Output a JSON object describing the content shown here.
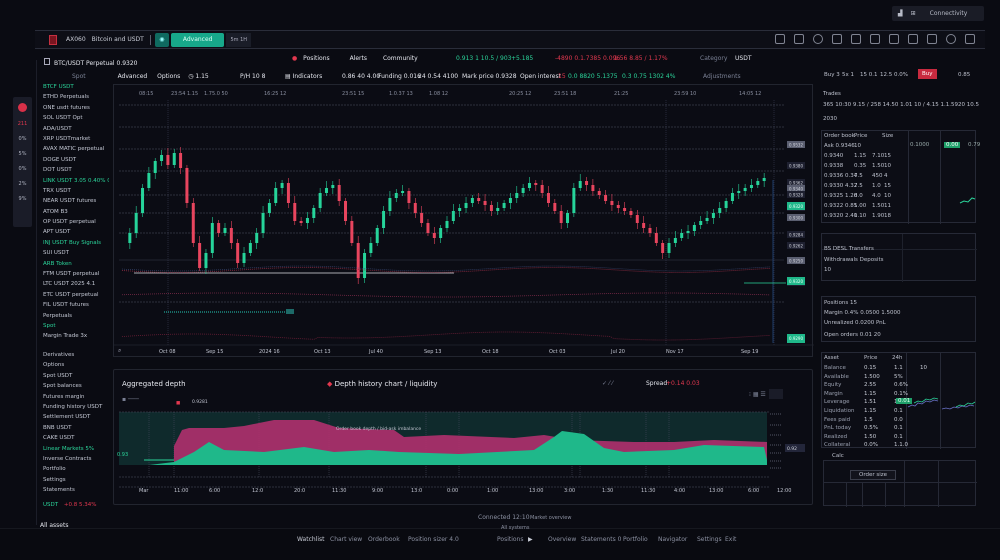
{
  "window_controls": {
    "icons": [
      "download-icon",
      "split-icon"
    ],
    "label": "Connectivity"
  },
  "toolbar": {
    "symbol_code": "AX060",
    "symbol_name": "Bitcoin and USDT",
    "active_button": "Advanced",
    "small_button": "5m 1H",
    "right_icons": [
      "layout-icon",
      "indicator-icon",
      "alert-icon",
      "drawing-icon",
      "replay-icon",
      "compare-icon",
      "template-icon",
      "calendar-icon",
      "screener-icon",
      "account-icon",
      "fullscreen-icon"
    ]
  },
  "header": {
    "pair_title": "BTC/USDT Perpetual  0.9320",
    "nav": [
      "Positions",
      "Alerts",
      "Community"
    ],
    "price_green": "0.913 1 10.5 / 903",
    "change_green": "+5.185",
    "change_red": "-4890 0.1.7385 0.096",
    "change_red2": "1.56 8.85 / 1.17%",
    "right_label": "Category",
    "right_value": "USDT",
    "sub_left": "Spot",
    "sub_items": [
      "Advanced",
      "Options",
      "1.15"
    ],
    "sub_mid": [
      "P/H 10  8",
      "Indicators"
    ],
    "sub_stats": [
      "0.86 40  4.00",
      "Funding 0.016",
      "24  0.54 4100",
      "Mark price 0.9328"
    ],
    "sub_right_label": "Open interest",
    "sub_right_red": "15",
    "sub_right_green": "0.0 8820 5.1375",
    "sub_right_2": "0.3  0.75 1302  4%",
    "sub_right_3": "Adjustments"
  },
  "sidebar": {
    "mini": [
      "L",
      "211",
      "0%",
      "5%",
      "0%",
      "2%",
      "9%"
    ],
    "watchlist": [
      {
        "label": "BTCF USDT",
        "color": "green"
      },
      {
        "label": "ETHD Perpetuals",
        "color": "white"
      },
      {
        "label": "ONE usdt futures",
        "color": "white"
      },
      {
        "label": "SOL USDT    Opt",
        "color": "white"
      },
      {
        "label": "ADA/USDT",
        "color": "white"
      },
      {
        "label": "XRP USDTmarket",
        "color": "white"
      },
      {
        "label": "AVAX MATIC perpetual",
        "color": "white"
      },
      {
        "label": "DOGE USDT",
        "color": "white"
      },
      {
        "label": "DOT USDT",
        "color": "white"
      },
      {
        "label": "LINK USDT   3.05 0.40% 0.01",
        "color": "green"
      },
      {
        "label": "TRX USDT",
        "color": "white"
      },
      {
        "label": "NEAR USDT futures",
        "color": "white"
      },
      {
        "label": "ATOM B3",
        "color": "white"
      },
      {
        "label": "OP USDT perpetual",
        "color": "white"
      },
      {
        "label": "APT USDT",
        "color": "white"
      },
      {
        "label": "INJ USDT Buy Signals",
        "color": "green"
      },
      {
        "label": "SUI USDT",
        "color": "white"
      },
      {
        "label": "ARB Token",
        "color": "green"
      },
      {
        "label": "FTM USDT perpetual",
        "color": "white"
      },
      {
        "label": "LTC USDT 2025 4.1",
        "color": "white"
      },
      {
        "label": "ETC USDT perpetual",
        "color": "white"
      },
      {
        "label": "FIL USDT futures",
        "color": "white"
      },
      {
        "label": "Perpetuals",
        "color": "white"
      },
      {
        "label": "Spot",
        "color": "green"
      },
      {
        "label": "Margin Trade 3x",
        "color": "white"
      }
    ],
    "watchlist2": [
      {
        "label": "Derivatives",
        "color": "white"
      },
      {
        "label": "Options",
        "color": "white"
      },
      {
        "label": "Spot USDT",
        "color": "white"
      },
      {
        "label": "Spot balances",
        "color": "white"
      },
      {
        "label": "Futures margin",
        "color": "white"
      },
      {
        "label": "Funding history  USDT",
        "color": "white"
      },
      {
        "label": "Settlement USDT",
        "color": "white"
      },
      {
        "label": "BNB USDT",
        "color": "white"
      },
      {
        "label": "CAKE USDT",
        "color": "white"
      },
      {
        "label": "Linear Markets   5%",
        "color": "green"
      },
      {
        "label": "Inverse Contracts",
        "color": "white"
      },
      {
        "label": "Portfolio",
        "color": "white"
      },
      {
        "label": "Settings",
        "color": "white"
      },
      {
        "label": "Statements",
        "color": "white"
      }
    ],
    "status_green": "USDT",
    "status_red": "+0.8 5.34%",
    "bottom_label": "All assets"
  },
  "main_chart": {
    "top_labels": [
      "08:15",
      "23:54 1.15",
      "1.75.0 50",
      "16:25 12",
      "23:51 15",
      "1.0.37 13",
      "1.08 12",
      "20:25 12",
      "23:51 18",
      "21:25",
      "23:59 10",
      "14:05 12"
    ],
    "x_labels": [
      "Oct 08",
      "Sep 15",
      "2024 16",
      "Oct 13",
      "Jul 40",
      "Sep 13",
      "Oct 18",
      "Oct 03",
      "Jul 20",
      "Nov 17",
      "Sep 19"
    ],
    "price_tags": [
      "0.9532",
      "0.9380",
      "0.9362",
      "0.9340",
      "0.9328",
      "0.9312",
      "0.9300",
      "0.9284",
      "0.9262",
      "0.9250",
      "0.9228"
    ],
    "tag_current": "0.9320",
    "tag_bottom": "0.9290",
    "colors": {
      "up": "#26d49a",
      "down": "#e8455e",
      "grid": "#3a3d4a"
    }
  },
  "sub_chart": {
    "title": "Aggregated depth",
    "mid_title": "Depth history chart / liquidity",
    "right_label": "Spread",
    "right_value": "+0.14 0.03",
    "annotation": "Order book depth / bid-ask imbalance",
    "left_value": "0.93",
    "left_tag": "0.9281",
    "price_tag": "0.92",
    "x_labels": [
      "Mar",
      "11:00",
      "6:00",
      "12:0",
      "20:0",
      "11:30",
      "9:00",
      "13:0",
      "0:00",
      "1:00",
      "13:00",
      "3:00",
      "1:30",
      "11:30",
      "4:00",
      "13:00",
      "6:00",
      "12:00"
    ],
    "colors": {
      "bid": "#1fb88a",
      "ask": "#b0306e",
      "band": "#113a38"
    }
  },
  "right_panel": {
    "tabs": [
      "Buy 3",
      "5x 1",
      "15 0.1",
      "12.5 0.0%"
    ],
    "buy_button": "Buy",
    "tab_extra": "0.85",
    "section1_title": "Trades",
    "section1_line": "365 10:30 9.15 / 258 14.50 1.01 10 / 4.15  1.1.5920   10.5",
    "section1_sub": "2030",
    "table_header": [
      "Order book",
      "Price",
      "Size"
    ],
    "table_rows": [
      [
        "Ask 0.9346",
        "10",
        "",
        ""
      ],
      [
        "0.9340",
        "1.15",
        "7.10",
        "15"
      ],
      [
        "0.9338",
        "0.35",
        "1.50",
        "10"
      ],
      [
        "0.9336 0.34",
        "7.5",
        "450",
        "4"
      ],
      [
        "0.9330  4.32",
        "7.5",
        "1.0",
        "15"
      ],
      [
        "0.9325  1.20",
        "8.0",
        "4.0",
        "10"
      ],
      [
        "0.9322  0.85",
        "1.00",
        "1.50",
        "11"
      ],
      [
        "0.9320  2.40",
        "1.10",
        "1.90",
        "18"
      ]
    ],
    "mini_header": [
      "0.1000",
      "0.00",
      "0.79"
    ],
    "mini_badge": "0.00",
    "mini_tag": "0.10",
    "section2_title": "BS DESL Transfers",
    "section2_line1": "Withdrawals  Deposits",
    "section2_line2": "10",
    "section2_line3": "Pending 0.00",
    "section3_title": "Positions  15",
    "section3_line1": "Margin  0.4% 0.0500 1.5000",
    "section3_line2": "Unrealized  0.0200 PnL",
    "section3_line3": "Open orders  0.01  20",
    "stats_header": [
      "Asset",
      "Price",
      "24h"
    ],
    "stats_rows": [
      [
        "Balance",
        "0.15",
        "1.1",
        "10"
      ],
      [
        "Available",
        "1.500",
        "5%",
        ""
      ],
      [
        "Equity",
        "2.55",
        "0.6%",
        ""
      ],
      [
        "Margin",
        "1.15",
        "0.1%",
        ""
      ],
      [
        "Leverage",
        "1.51",
        "1.1",
        ""
      ],
      [
        "Liquidation",
        "1.15",
        "0.1",
        ""
      ],
      [
        "Fees paid",
        "1.5",
        "0.0",
        ""
      ],
      [
        "PnL today",
        "0.5%",
        "0.1",
        ""
      ],
      [
        "Realized",
        "1.50",
        "0.1",
        ""
      ],
      [
        "Collateral",
        "0.0%",
        "1.1.0",
        ""
      ]
    ],
    "stats_badge": "0.01",
    "bottom_label": "Calc",
    "bottom_input": "Order size"
  },
  "footer": {
    "center1": "Connected  12:10",
    "center2": "Market overview",
    "center_sub": "All systems",
    "nav_left": [
      "Watchlist",
      "Chart view",
      "Orderbook",
      "Position sizer 4.0"
    ],
    "nav_right": [
      "Positions",
      "Overview",
      "Statements 0",
      "Portfolio",
      "Navigator",
      "Settings",
      "Exit"
    ]
  }
}
